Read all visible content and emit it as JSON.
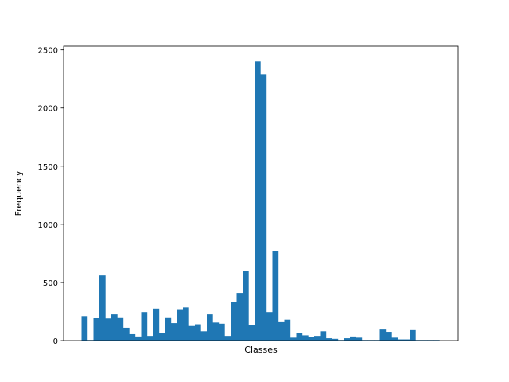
{
  "chart_data": {
    "type": "bar",
    "title": "",
    "xlabel": "Classes",
    "ylabel": "Frequency",
    "ylim": [
      0,
      2500
    ],
    "yticks": [
      0,
      500,
      1000,
      1500,
      2000,
      2500
    ],
    "ytick_labels": [
      "0",
      "500",
      "1000",
      "1500",
      "2000",
      "2500"
    ],
    "x_tick_labels_shown": false,
    "grid": false,
    "bar_color": "#1f77b4",
    "values": [
      210,
      5,
      195,
      560,
      190,
      225,
      200,
      110,
      55,
      35,
      245,
      40,
      275,
      65,
      200,
      150,
      270,
      285,
      125,
      140,
      80,
      225,
      155,
      145,
      40,
      335,
      410,
      600,
      130,
      2400,
      2290,
      245,
      770,
      165,
      180,
      25,
      65,
      45,
      30,
      40,
      80,
      20,
      15,
      5,
      20,
      35,
      25,
      5,
      5,
      5,
      95,
      75,
      25,
      10,
      10,
      90,
      5,
      5,
      5,
      5
    ]
  }
}
